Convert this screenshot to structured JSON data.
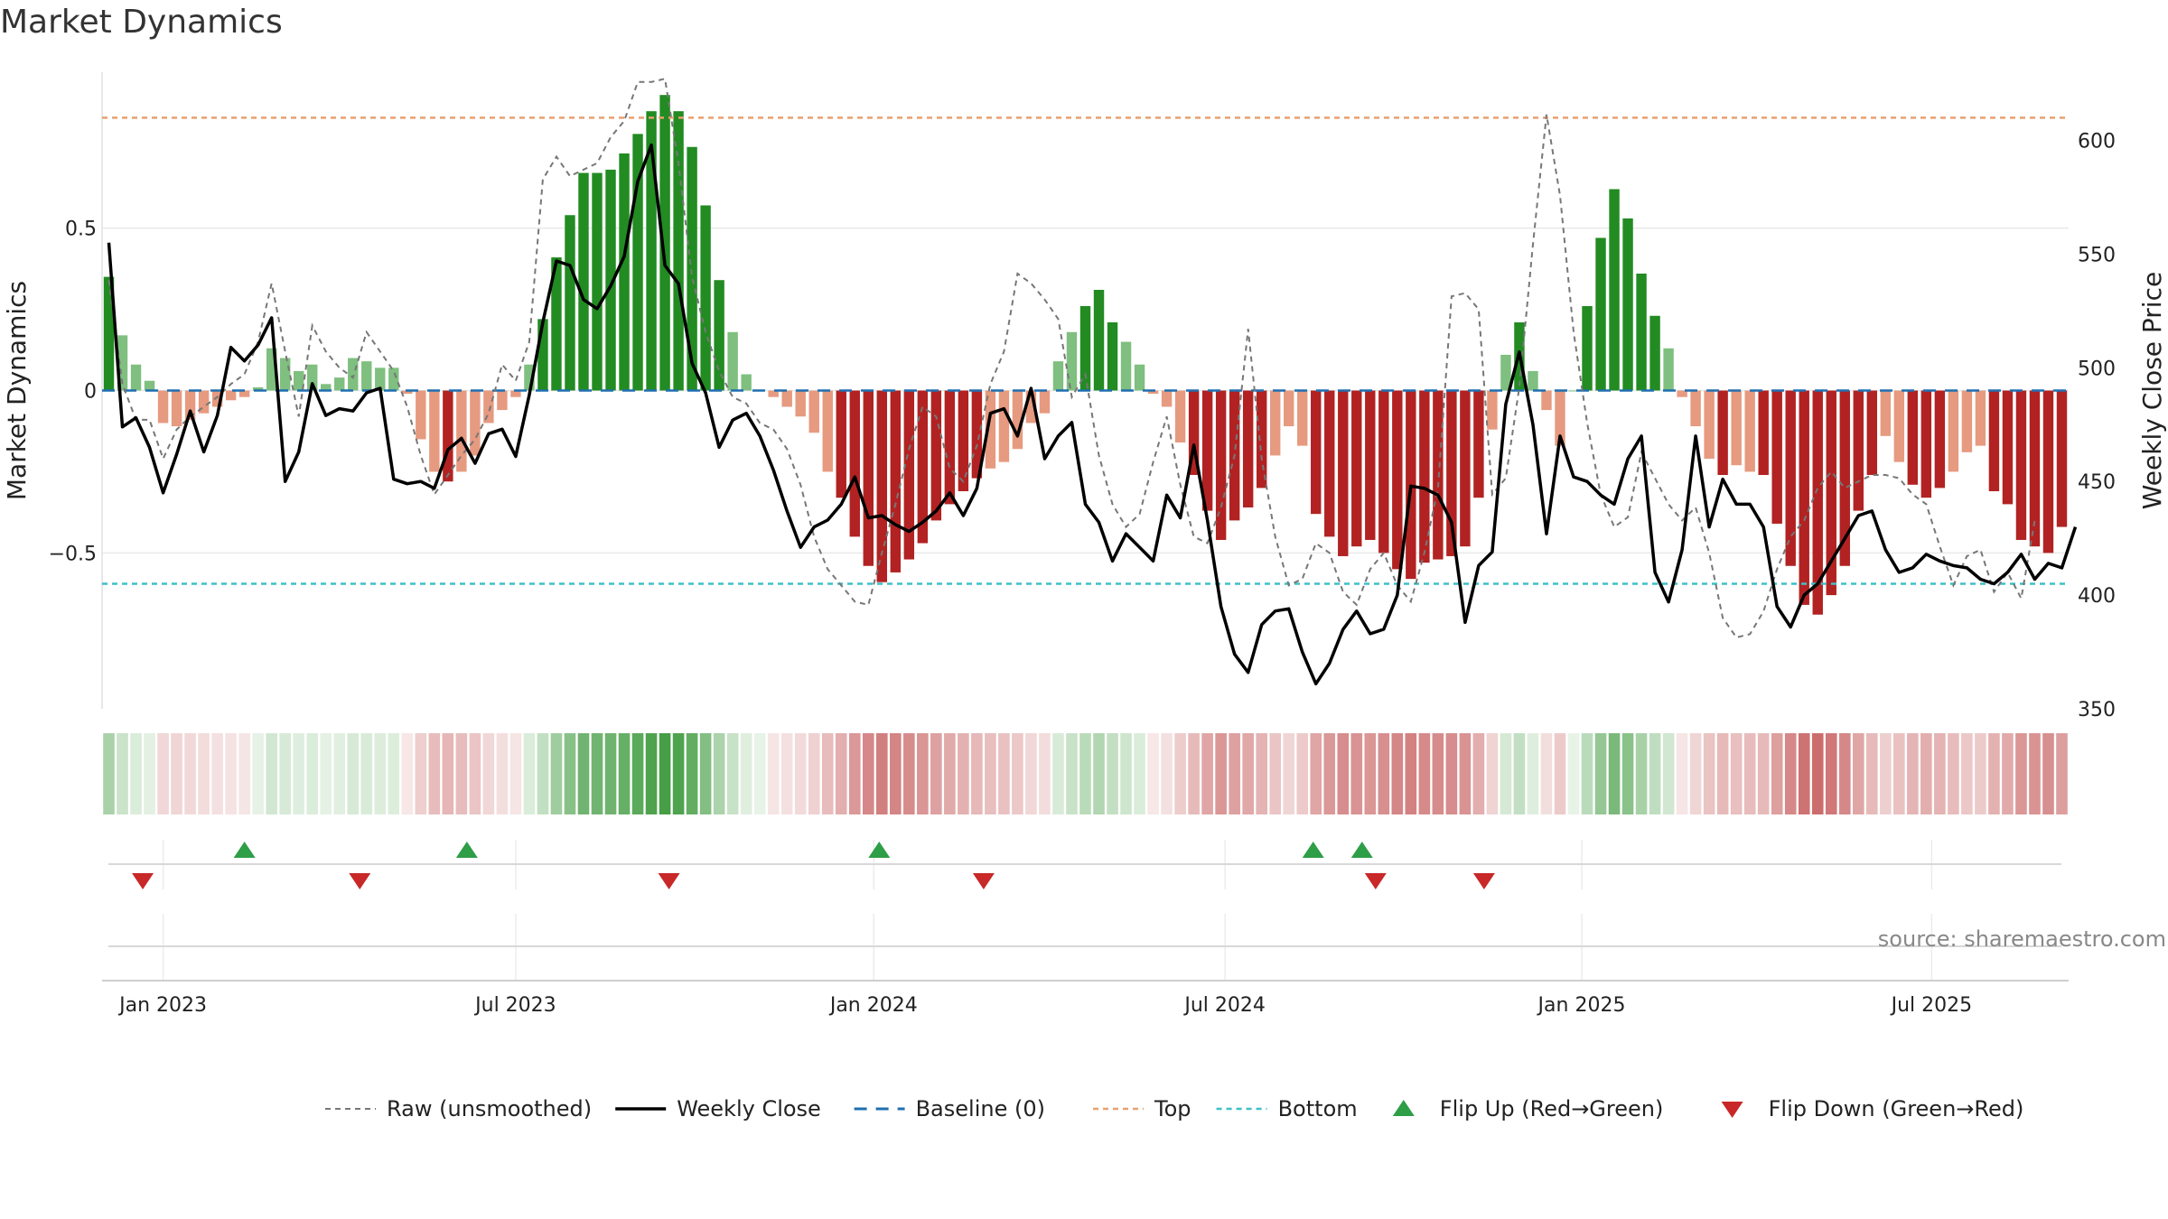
{
  "chart_data": {
    "type": "bar",
    "title": "Market Dynamics",
    "ylabel_left": "Market Dynamics",
    "ylabel_right": "Weekly Close Price",
    "y_left_ticks": [
      0.5,
      0,
      -0.5
    ],
    "y_left_tick_labels": [
      "0.5",
      "0",
      "−0.5"
    ],
    "y_left_range": [
      -0.98,
      0.98
    ],
    "y_right_ticks": [
      600,
      550,
      500,
      450,
      400,
      350
    ],
    "y_right_range": [
      350,
      630
    ],
    "x_ticks": [
      "Jan 2023",
      "Jul 2023",
      "Jan 2024",
      "Jul 2024",
      "Jan 2025",
      "Jul 2025"
    ],
    "x_tick_index": [
      4,
      30,
      56.4,
      82.3,
      108.6,
      134.4
    ],
    "top_level": 0.84,
    "bottom_level": -0.595,
    "baseline": 0,
    "bar_values": [
      0.35,
      0.17,
      0.08,
      0.03,
      -0.1,
      -0.11,
      -0.09,
      -0.07,
      -0.05,
      -0.03,
      -0.02,
      0.01,
      0.13,
      0.1,
      0.06,
      0.08,
      0.02,
      0.04,
      0.1,
      0.09,
      0.07,
      0.07,
      -0.01,
      -0.15,
      -0.25,
      -0.28,
      -0.25,
      -0.2,
      -0.1,
      -0.06,
      -0.02,
      0.08,
      0.22,
      0.41,
      0.54,
      0.67,
      0.67,
      0.68,
      0.73,
      0.79,
      0.86,
      0.91,
      0.86,
      0.75,
      0.57,
      0.34,
      0.18,
      0.05,
      0.0,
      -0.02,
      -0.05,
      -0.08,
      -0.13,
      -0.25,
      -0.33,
      -0.45,
      -0.54,
      -0.59,
      -0.56,
      -0.52,
      -0.47,
      -0.4,
      -0.35,
      -0.31,
      -0.27,
      -0.24,
      -0.22,
      -0.18,
      -0.1,
      -0.07,
      0.09,
      0.18,
      0.26,
      0.31,
      0.21,
      0.15,
      0.08,
      -0.01,
      -0.05,
      -0.16,
      -0.26,
      -0.37,
      -0.46,
      -0.4,
      -0.36,
      -0.3,
      -0.2,
      -0.11,
      -0.17,
      -0.38,
      -0.45,
      -0.51,
      -0.48,
      -0.46,
      -0.5,
      -0.55,
      -0.58,
      -0.53,
      -0.52,
      -0.51,
      -0.48,
      -0.33,
      -0.12,
      0.11,
      0.21,
      0.06,
      -0.06,
      -0.17,
      0.0,
      0.26,
      0.47,
      0.62,
      0.53,
      0.36,
      0.23,
      0.13,
      -0.02,
      -0.11,
      -0.21,
      -0.26,
      -0.23,
      -0.25,
      -0.26,
      -0.41,
      -0.54,
      -0.66,
      -0.69,
      -0.63,
      -0.54,
      -0.37,
      -0.26,
      -0.14,
      -0.22,
      -0.29,
      -0.33,
      -0.3,
      -0.25,
      -0.19,
      -0.17,
      -0.31,
      -0.35,
      -0.46,
      -0.48,
      -0.5,
      -0.42
    ],
    "raw_values": [
      0.34,
      0.02,
      -0.09,
      -0.09,
      -0.21,
      -0.12,
      -0.08,
      -0.05,
      -0.02,
      0.02,
      0.05,
      0.15,
      0.33,
      0.12,
      -0.08,
      0.2,
      0.12,
      0.07,
      0.04,
      0.18,
      0.12,
      0.06,
      -0.05,
      -0.2,
      -0.32,
      -0.26,
      -0.2,
      -0.15,
      -0.07,
      0.08,
      0.03,
      0.15,
      0.65,
      0.72,
      0.66,
      0.68,
      0.7,
      0.78,
      0.83,
      0.95,
      0.95,
      0.96,
      0.7,
      0.35,
      0.18,
      0.06,
      -0.02,
      -0.04,
      -0.1,
      -0.12,
      -0.18,
      -0.29,
      -0.45,
      -0.55,
      -0.6,
      -0.65,
      -0.66,
      -0.5,
      -0.35,
      -0.18,
      -0.05,
      -0.08,
      -0.24,
      -0.28,
      -0.17,
      0.02,
      0.12,
      0.36,
      0.33,
      0.28,
      0.22,
      -0.02,
      0.05,
      -0.2,
      -0.35,
      -0.42,
      -0.38,
      -0.22,
      -0.08,
      -0.29,
      -0.45,
      -0.47,
      -0.36,
      -0.2,
      0.19,
      -0.21,
      -0.45,
      -0.6,
      -0.58,
      -0.47,
      -0.5,
      -0.62,
      -0.66,
      -0.55,
      -0.5,
      -0.6,
      -0.65,
      -0.5,
      -0.3,
      0.29,
      0.3,
      0.25,
      -0.32,
      -0.27,
      0.01,
      0.45,
      0.85,
      0.6,
      0.18,
      -0.1,
      -0.32,
      -0.42,
      -0.39,
      -0.19,
      -0.27,
      -0.35,
      -0.4,
      -0.36,
      -0.5,
      -0.7,
      -0.76,
      -0.75,
      -0.68,
      -0.55,
      -0.45,
      -0.4,
      -0.3,
      -0.25,
      -0.3,
      -0.28,
      -0.26,
      -0.26,
      -0.27,
      -0.32,
      -0.35,
      -0.48,
      -0.6,
      -0.51,
      -0.49,
      -0.62,
      -0.56,
      -0.64,
      -0.4
    ],
    "close_values": [
      555,
      474,
      478,
      465,
      445,
      462,
      481,
      463,
      479,
      509,
      503,
      510,
      522,
      450,
      463,
      493,
      479,
      482,
      481,
      489,
      491,
      451,
      449,
      450,
      447,
      464,
      469,
      458,
      471,
      473,
      461,
      488,
      520,
      547,
      545,
      530,
      526,
      536,
      549,
      582,
      598,
      545,
      537,
      502,
      489,
      465,
      477,
      480,
      470,
      455,
      437,
      421,
      430,
      433,
      440,
      452,
      434,
      435,
      431,
      428,
      432,
      437,
      445,
      435,
      447,
      480,
      482,
      470,
      491,
      460,
      470,
      476,
      440,
      432,
      415,
      427,
      421,
      415,
      444,
      434,
      466,
      433,
      395,
      374,
      366,
      387,
      393,
      394,
      375,
      361,
      370,
      385,
      393,
      383,
      385,
      400,
      448,
      447,
      444,
      432,
      388,
      413,
      419,
      484,
      507,
      475,
      427,
      470,
      452,
      450,
      444,
      440,
      460,
      470,
      410,
      397,
      420,
      470,
      430,
      451,
      440,
      440,
      430,
      395,
      386,
      400,
      405,
      415,
      425,
      435,
      437,
      420,
      410,
      412,
      418,
      415,
      413,
      412,
      407,
      405,
      410,
      418,
      407,
      414,
      412,
      430
    ]
  },
  "heat_strip_colors_note": "",
  "flips": {
    "up": [
      10,
      26.4,
      56.8,
      88.8,
      92.4
    ],
    "down": [
      2.5,
      18.5,
      41.3,
      64.5,
      93.4,
      101.4
    ]
  },
  "legend": {
    "raw": "Raw (unsmoothed)",
    "close": "Weekly Close",
    "baseline": "Baseline (0)",
    "top": "Top",
    "bottom": "Bottom",
    "flip_up": "Flip Up (Red→Green)",
    "flip_down": "Flip Down (Green→Red)"
  },
  "source": "source: sharemaestro.com",
  "colors": {
    "pos_strong": "#228b22",
    "pos_weak": "#7fbf7f",
    "neg_strong": "#b22222",
    "neg_weak": "#e69a80",
    "close_line": "#000000",
    "raw_line": "#777777",
    "baseline": "#1f6fb0",
    "top": "#e8a070",
    "bottom": "#3ec0c8",
    "flip_up": "#2e9e47",
    "flip_down": "#c82828"
  }
}
